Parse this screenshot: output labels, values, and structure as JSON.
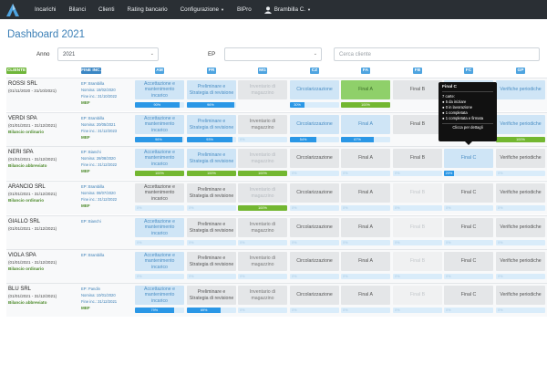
{
  "nav": {
    "items": [
      "Incarichi",
      "Bilanci",
      "Clienti",
      "Rating bancario",
      "Configurazione",
      "BIPro"
    ],
    "user": "Brambilla C."
  },
  "title": "Dashboard 2021",
  "filters": {
    "anno_label": "Anno",
    "anno_value": "2021",
    "ep_label": "EP",
    "ep_value": "",
    "search_placeholder": "Cerca cliente"
  },
  "columns": {
    "cliente": "CLIENTE",
    "fine": "FINE INC.",
    "stages": [
      "AM",
      "PR",
      "MG",
      "CZ",
      "FA",
      "FB",
      "FC",
      "GP"
    ]
  },
  "colors": {
    "cliente": "#6fb63a",
    "fine": "#3a86c4",
    "stage": "#4ea4e0"
  },
  "stage_labels": [
    "Accettazione e mantenimento incarico",
    "Preliminare e Strategia di revisione",
    "Inventario di magazzino",
    "Circolarizzazione",
    "Final A",
    "Final B",
    "Final C",
    "Verifiche periodiche"
  ],
  "rows": [
    {
      "name": "ROSSI SRL",
      "date": "(01/11/2020 - 31/10/2021)",
      "type": "",
      "info": [
        "EP: Brambilla",
        "Nomina: 18/02/2020",
        "Fine inc.: 31/10/2022"
      ],
      "mef": "MEF",
      "cells": [
        {
          "s": "blue",
          "p": "90%"
        },
        {
          "s": "blue",
          "p": "96%"
        },
        {
          "s": "mgdim",
          "p": ""
        },
        {
          "s": "blue",
          "p": "30%"
        },
        {
          "s": "green",
          "p": "100%",
          "g": true
        },
        {
          "s": "gray",
          "p": ""
        },
        {
          "s": "blue",
          "p": ""
        },
        {
          "s": "blue",
          "p": ""
        }
      ]
    },
    {
      "name": "VERDI SPA",
      "date": "(01/01/2021 - 31/12/2021)",
      "type": "Bilancio ordinario",
      "info": [
        "EP: Brambilla",
        "Nomina: 20/05/2021",
        "Fine inc.: 31/12/2023"
      ],
      "mef": "MEF",
      "cells": [
        {
          "s": "blue",
          "p": "96%"
        },
        {
          "s": "blue",
          "p": "93%"
        },
        {
          "s": "mg",
          "p": "0%"
        },
        {
          "s": "blue",
          "p": "54%"
        },
        {
          "s": "blue",
          "p": "67%"
        },
        {
          "s": "gray",
          "p": ""
        },
        {
          "s": "blue",
          "p": ""
        },
        {
          "s": "blue",
          "p": "100%",
          "g": true
        }
      ]
    },
    {
      "name": "NERI SPA",
      "date": "(01/01/2021 - 31/12/2021)",
      "type": "Bilancio abbreviato",
      "info": [
        "EP: Bianchi",
        "Nomina: 28/08/2020",
        "Fine inc.: 31/12/2022"
      ],
      "mef": "MEF",
      "cells": [
        {
          "s": "blue",
          "p": "100%",
          "g": true
        },
        {
          "s": "blue",
          "p": "100%",
          "g": true
        },
        {
          "s": "mgdim",
          "p": "100%",
          "g": true
        },
        {
          "s": "gray",
          "p": "0%"
        },
        {
          "s": "gray",
          "p": "0%"
        },
        {
          "s": "gray",
          "p": "0%"
        },
        {
          "s": "blue",
          "p": "20%"
        },
        {
          "s": "gray",
          "p": "0%"
        }
      ]
    },
    {
      "name": "ARANCIO SRL",
      "date": "(01/01/2021 - 31/12/2021)",
      "type": "Bilancio ordinario",
      "info": [
        "EP: Brambilla",
        "Nomina: 08/07/2020",
        "Fine inc.: 31/12/2022"
      ],
      "mef": "MEF",
      "cells": [
        {
          "s": "gray",
          "p": "0%"
        },
        {
          "s": "gray",
          "p": "0%"
        },
        {
          "s": "mgdim",
          "p": "100%",
          "g": true
        },
        {
          "s": "gray",
          "p": "0%"
        },
        {
          "s": "gray",
          "p": "0%"
        },
        {
          "s": "light",
          "p": "0%"
        },
        {
          "s": "gray",
          "p": "0%"
        },
        {
          "s": "gray",
          "p": "0%"
        }
      ]
    },
    {
      "name": "GIALLO SRL",
      "date": "(01/01/2021 - 31/12/2021)",
      "type": "",
      "info": [
        "EP: Bianchi"
      ],
      "mef": "",
      "cells": [
        {
          "s": "blue",
          "p": "0%"
        },
        {
          "s": "gray",
          "p": "0%"
        },
        {
          "s": "mg",
          "p": "0%"
        },
        {
          "s": "gray",
          "p": "0%"
        },
        {
          "s": "gray",
          "p": "0%"
        },
        {
          "s": "light",
          "p": "0%"
        },
        {
          "s": "gray",
          "p": "0%"
        },
        {
          "s": "gray",
          "p": "0%"
        }
      ]
    },
    {
      "name": "VIOLA SPA",
      "date": "(01/01/2021 - 31/12/2021)",
      "type": "Bilancio ordinario",
      "info": [
        "EP: Brambilla"
      ],
      "mef": "",
      "cells": [
        {
          "s": "blue",
          "p": "0%"
        },
        {
          "s": "gray",
          "p": "0%"
        },
        {
          "s": "mg",
          "p": "0%"
        },
        {
          "s": "gray",
          "p": "0%"
        },
        {
          "s": "gray",
          "p": "0%"
        },
        {
          "s": "light",
          "p": "0%"
        },
        {
          "s": "gray",
          "p": "0%"
        },
        {
          "s": "gray",
          "p": "0%"
        }
      ]
    },
    {
      "name": "BLU SRL",
      "date": "(01/01/2021 - 31/12/2021)",
      "type": "Bilancio abbreviato",
      "info": [
        "EP: Pandin",
        "Nomina: 10/01/2020",
        "Fine inc.: 31/12/2021"
      ],
      "mef": "MEF",
      "cells": [
        {
          "s": "blue",
          "p": "79%"
        },
        {
          "s": "gray",
          "p": "69%"
        },
        {
          "s": "mg",
          "p": "0%"
        },
        {
          "s": "gray",
          "p": "0%"
        },
        {
          "s": "gray",
          "p": "0%"
        },
        {
          "s": "light",
          "p": "0%"
        },
        {
          "s": "gray",
          "p": "0%"
        },
        {
          "s": "gray",
          "p": "0%"
        }
      ]
    }
  ],
  "tooltip": {
    "title": "Final C",
    "lines": [
      "7 carte:",
      "● 5 da iniziare",
      "● 0 in lavorazione",
      "● 1 completata",
      "● 1 completata e firmata"
    ],
    "link": "Clicca per dettagli"
  }
}
